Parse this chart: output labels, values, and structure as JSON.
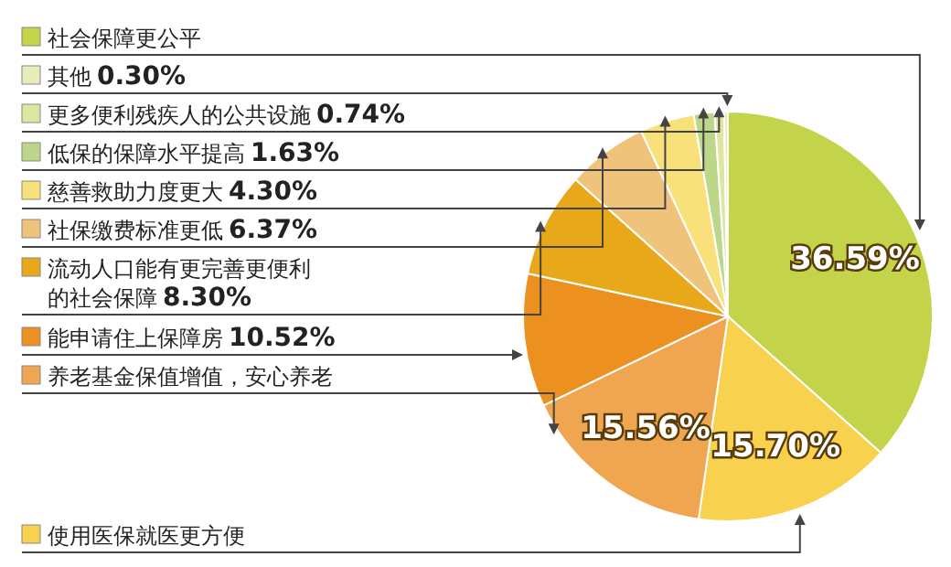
{
  "chart_data": {
    "type": "pie",
    "categories": [
      "社会保障更公平",
      "使用医保就医更方便",
      "养老基金保值增值，安心养老",
      "能申请住上保障房",
      "流动人口能有更完善更便利的社会保障",
      "社保缴费标准更低",
      "慈善救助力度更大",
      "低保的保障水平提高",
      "更多便利残疾人的公共设施",
      "其他"
    ],
    "values": [
      36.59,
      15.7,
      15.56,
      10.52,
      8.3,
      6.37,
      4.3,
      1.63,
      0.74,
      0.3
    ],
    "value_labels": [
      "36.59%",
      "15.70%",
      "15.56%",
      "10.52%",
      "8.30%",
      "6.37%",
      "4.30%",
      "1.63%",
      "0.74%",
      "0.30%"
    ],
    "colors": [
      "#c3d44a",
      "#f8d24e",
      "#f0a550",
      "#ec9120",
      "#e8a81a",
      "#f0c37a",
      "#f8e07a",
      "#bcd68a",
      "#dde6a0",
      "#e8ecb8"
    ],
    "legend": "left"
  }
}
